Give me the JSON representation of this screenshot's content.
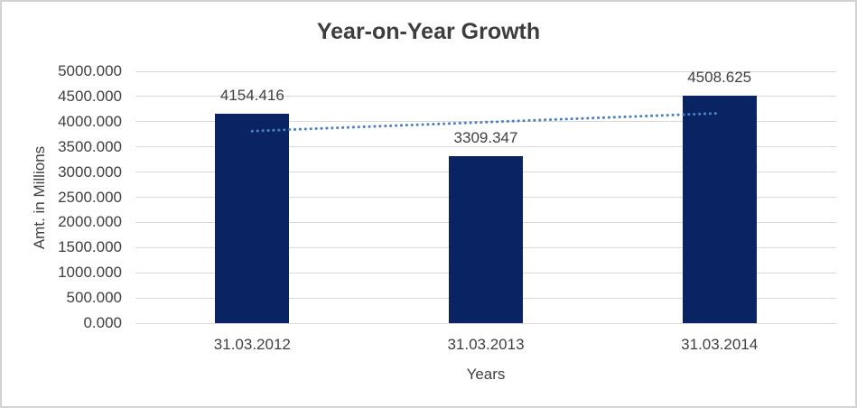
{
  "window": {
    "background_color": "#ffffff",
    "border_color": "#d2d2d2"
  },
  "chart_data": {
    "type": "bar",
    "title": "Year-on-Year Growth",
    "xlabel": "Years",
    "ylabel": "Amt. in Millions",
    "categories": [
      "31.03.2012",
      "31.03.2013",
      "31.03.2014"
    ],
    "values": [
      4154.416,
      3309.347,
      4508.625
    ],
    "data_labels": [
      "4154.416",
      "3309.347",
      "4508.625"
    ],
    "ylim": [
      0,
      5000
    ],
    "ytick_step": 500,
    "ytick_labels": [
      "0.000",
      "500.000",
      "1000.000",
      "1500.000",
      "2000.000",
      "2500.000",
      "3000.000",
      "3500.000",
      "4000.000",
      "4500.000",
      "5000.000"
    ],
    "grid": true,
    "legend": false,
    "bar_color": "#0a2463",
    "gridline_color": "#d9d9d9",
    "text_color": "#404040",
    "title_color": "#3d3d3d",
    "trendline": {
      "type": "linear",
      "line_style": "dotted",
      "color": "#4a80c4",
      "start_value": 3813.7,
      "end_value": 4167.9,
      "spans": [
        "31.03.2012",
        "31.03.2014"
      ]
    }
  }
}
